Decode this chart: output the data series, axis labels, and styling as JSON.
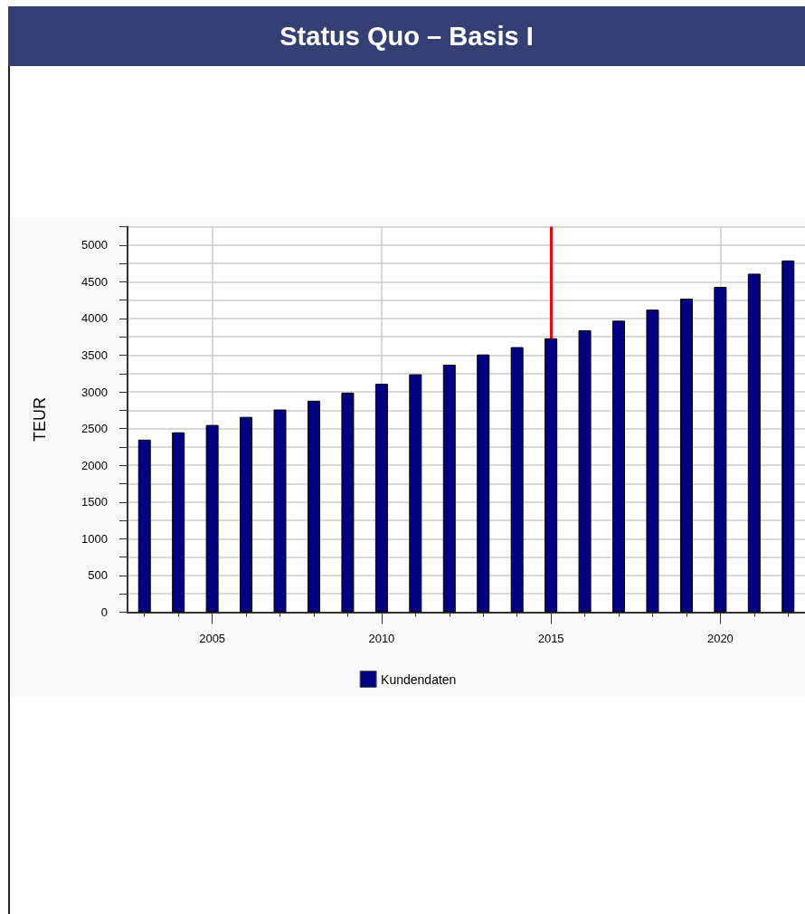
{
  "chart_data": {
    "type": "bar",
    "title": "Status Quo – Basis I",
    "ylabel": "TEUR",
    "x": [
      2003,
      2004,
      2005,
      2006,
      2007,
      2008,
      2009,
      2010,
      2011,
      2012,
      2013,
      2014,
      2015,
      2016,
      2017,
      2018,
      2019,
      2020,
      2021,
      2022
    ],
    "series": [
      {
        "name": "Kundendaten",
        "color": "#000080",
        "values": [
          2350,
          2450,
          2550,
          2660,
          2760,
          2880,
          2990,
          3110,
          3240,
          3370,
          3510,
          3610,
          3730,
          3840,
          3970,
          4120,
          4270,
          4430,
          4610,
          4790
        ]
      }
    ],
    "xlim": [
      2002.5,
      2022.5
    ],
    "xticks": [
      {
        "value": 2003,
        "label": null
      },
      {
        "value": 2004,
        "label": null
      },
      2005,
      {
        "value": 2006,
        "label": null
      },
      {
        "value": 2007,
        "label": null
      },
      {
        "value": 2008,
        "label": null
      },
      {
        "value": 2009,
        "label": null
      },
      2010,
      {
        "value": 2011,
        "label": null
      },
      {
        "value": 2012,
        "label": null
      },
      {
        "value": 2013,
        "label": null
      },
      {
        "value": 2014,
        "label": null
      },
      2015,
      {
        "value": 2016,
        "label": null
      },
      {
        "value": 2017,
        "label": null
      },
      {
        "value": 2018,
        "label": null
      },
      {
        "value": 2019,
        "label": null
      },
      2020,
      {
        "value": 2021,
        "label": null
      },
      {
        "value": 2022,
        "label": null
      }
    ],
    "ylim": [
      0,
      5250
    ],
    "yticks": [
      0,
      {
        "value": 250,
        "label": null
      },
      500,
      {
        "value": 750,
        "label": null
      },
      1000,
      {
        "value": 1250,
        "label": null
      },
      1500,
      {
        "value": 1750,
        "label": null
      },
      2000,
      {
        "value": 2250,
        "label": null
      },
      2500,
      {
        "value": 2750,
        "label": null
      },
      3000,
      {
        "value": 3250,
        "label": null
      },
      3500,
      {
        "value": 3750,
        "label": null
      },
      4000,
      {
        "value": 4250,
        "label": null
      },
      4500,
      {
        "value": 4750,
        "label": null
      },
      5000,
      {
        "value": 5250,
        "label": null
      }
    ],
    "grid": true,
    "legend": "bottom",
    "ref_lines": [
      {
        "axis": "x",
        "value": 2015,
        "color": "#ff0000"
      }
    ]
  }
}
